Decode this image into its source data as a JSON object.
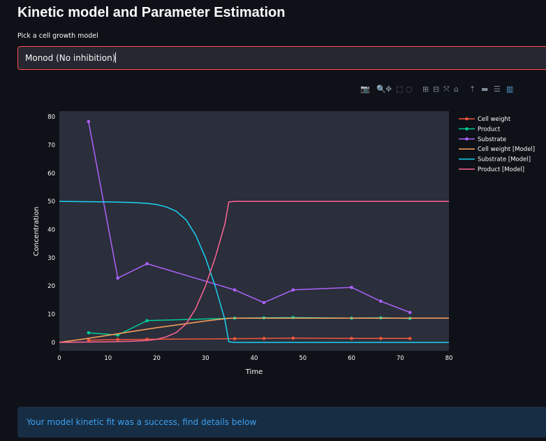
{
  "page": {
    "title": "Kinetic model and Parameter Estimation",
    "select_label": "Pick a cell growth model",
    "select_value": "Monod (No inhibition)",
    "alert_text": "Your model kinetic fit was a success, find details below"
  },
  "modebar": [
    {
      "icon": "camera-icon",
      "glyph": "📷"
    },
    {
      "icon": "zoom-icon",
      "glyph": "🔍"
    },
    {
      "icon": "pan-icon",
      "glyph": "✥"
    },
    {
      "icon": "box-select-icon",
      "glyph": "⬚"
    },
    {
      "icon": "lasso-select-icon",
      "glyph": "◌"
    },
    {
      "icon": "zoom-in-icon",
      "glyph": "⊞"
    },
    {
      "icon": "zoom-out-icon",
      "glyph": "⊟"
    },
    {
      "icon": "autoscale-icon",
      "glyph": "⤧"
    },
    {
      "icon": "reset-axes-icon",
      "glyph": "⌂"
    },
    {
      "icon": "spike-lines-icon",
      "glyph": "⇡"
    },
    {
      "icon": "hover-closest-icon",
      "glyph": "▬"
    },
    {
      "icon": "hover-compare-icon",
      "glyph": "☰"
    },
    {
      "icon": "plotly-logo-icon",
      "glyph": "▥"
    }
  ],
  "chart_data": {
    "type": "line",
    "xlabel": "Time",
    "ylabel": "Concentration",
    "xlim": [
      0,
      80
    ],
    "ylim": [
      -3,
      82
    ],
    "xticks": [
      0,
      10,
      20,
      30,
      40,
      50,
      60,
      70,
      80
    ],
    "yticks": [
      0,
      10,
      20,
      30,
      40,
      50,
      60,
      70,
      80
    ],
    "grid": false,
    "legend_position": "right",
    "series": [
      {
        "name": "Cell weight",
        "color": "#ef553b",
        "mode": "lines+markers",
        "x": [
          6,
          12,
          18,
          36,
          42,
          48,
          60,
          66,
          72
        ],
        "y": [
          0.8,
          1,
          1.1,
          1.3,
          1.4,
          1.5,
          1.4,
          1.4,
          1.4
        ]
      },
      {
        "name": "Product",
        "color": "#00cc96",
        "mode": "lines+markers",
        "x": [
          6,
          12,
          18,
          36,
          42,
          48,
          60,
          66,
          72
        ],
        "y": [
          3.4,
          2.6,
          7.7,
          8.6,
          8.7,
          8.8,
          8.6,
          8.7,
          8.5
        ]
      },
      {
        "name": "Substrate",
        "color": "#ab63fa",
        "mode": "lines+markers",
        "x": [
          6,
          12,
          18,
          36,
          42,
          48,
          60,
          66,
          72
        ],
        "y": [
          78.3,
          22.8,
          27.9,
          18.6,
          14.1,
          18.6,
          19.5,
          14.6,
          10.6
        ]
      },
      {
        "name": "Cell weight [Model]",
        "color": "#ffa15a",
        "mode": "lines",
        "x": [
          0,
          5,
          10,
          15,
          20,
          25,
          30,
          35,
          40,
          50,
          60,
          70,
          80
        ],
        "y": [
          0,
          1.2,
          2.5,
          3.9,
          5.2,
          6.4,
          7.6,
          8.6,
          8.6,
          8.6,
          8.6,
          8.6,
          8.6
        ]
      },
      {
        "name": "Substrate [Model]",
        "color": "#19d3f3",
        "mode": "lines",
        "x": [
          0,
          10,
          15,
          18,
          20,
          22,
          24,
          26,
          28,
          30,
          32,
          34,
          34.8,
          36,
          50,
          60,
          70,
          80
        ],
        "y": [
          50,
          49.8,
          49.6,
          49.3,
          48.9,
          48,
          46.5,
          43.5,
          38,
          30,
          20,
          8,
          0.2,
          0,
          0,
          0,
          0,
          0
        ]
      },
      {
        "name": "Product [Model]",
        "color": "#ff6692",
        "mode": "lines",
        "x": [
          0,
          10,
          15,
          18,
          20,
          22,
          24,
          26,
          28,
          30,
          32,
          34,
          34.8,
          36,
          50,
          60,
          70,
          80
        ],
        "y": [
          0,
          0.2,
          0.4,
          0.7,
          1.1,
          2,
          3.5,
          6.5,
          12,
          20,
          30,
          42,
          49.8,
          50,
          50,
          50,
          50,
          50
        ]
      }
    ]
  }
}
